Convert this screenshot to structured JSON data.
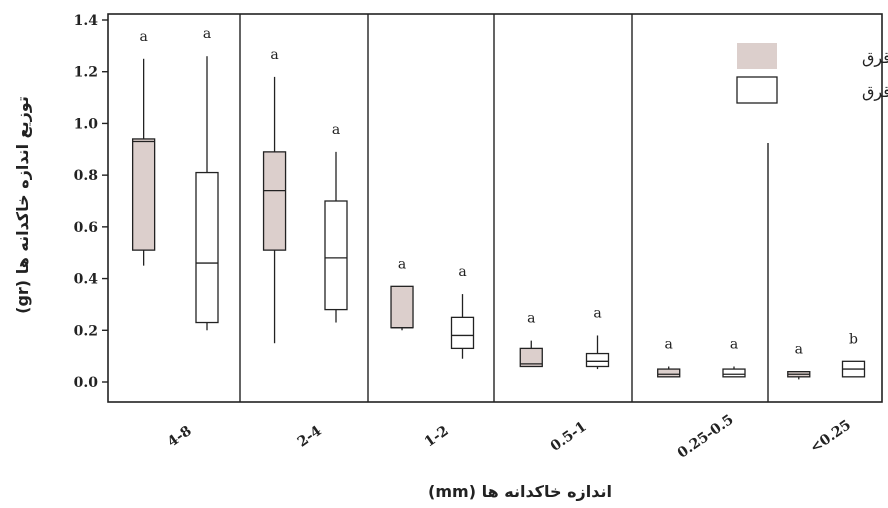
{
  "chart_data": {
    "type": "box",
    "title": "",
    "xlabel": "اندازه خاکدانه ها (mm)",
    "ylabel": "توزیع اندازه خاکدانه ها (gr)",
    "ylim": [
      0,
      1.4
    ],
    "yticks": [
      "0.0",
      "0.2",
      "0.4",
      "0.6",
      "0.8",
      "1.0",
      "1.2",
      "1.4"
    ],
    "categories": [
      "4-8",
      "2-4",
      "1-2",
      "0.5-1",
      "0.25-0.5",
      "<0.25"
    ],
    "legend_position": "top-right",
    "series": [
      {
        "name": "داخل قرق",
        "color": "#dccfcc",
        "boxes": [
          {
            "min": 0.45,
            "q1": 0.51,
            "median": 0.93,
            "q3": 0.94,
            "max": 1.25,
            "sig": "a"
          },
          {
            "min": 0.15,
            "q1": 0.51,
            "median": 0.74,
            "q3": 0.89,
            "max": 1.18,
            "sig": "a"
          },
          {
            "min": 0.2,
            "q1": 0.21,
            "median": 0.21,
            "q3": 0.37,
            "max": 0.37,
            "sig": "a"
          },
          {
            "min": 0.06,
            "q1": 0.06,
            "median": 0.07,
            "q3": 0.13,
            "max": 0.16,
            "sig": "a"
          },
          {
            "min": 0.02,
            "q1": 0.02,
            "median": 0.03,
            "q3": 0.05,
            "max": 0.06,
            "sig": "a"
          },
          {
            "min": 0.01,
            "q1": 0.02,
            "median": 0.03,
            "q3": 0.04,
            "max": 0.04,
            "sig": "a"
          }
        ]
      },
      {
        "name": "خارج قرق",
        "color": "#ffffff",
        "boxes": [
          {
            "min": 0.2,
            "q1": 0.23,
            "median": 0.46,
            "q3": 0.81,
            "max": 1.26,
            "sig": "a"
          },
          {
            "min": 0.23,
            "q1": 0.28,
            "median": 0.48,
            "q3": 0.7,
            "max": 0.89,
            "sig": "a"
          },
          {
            "min": 0.09,
            "q1": 0.13,
            "median": 0.18,
            "q3": 0.25,
            "max": 0.34,
            "sig": "a"
          },
          {
            "min": 0.05,
            "q1": 0.06,
            "median": 0.08,
            "q3": 0.11,
            "max": 0.18,
            "sig": "a"
          },
          {
            "min": 0.02,
            "q1": 0.02,
            "median": 0.03,
            "q3": 0.05,
            "max": 0.06,
            "sig": "a"
          },
          {
            "min": 0.02,
            "q1": 0.02,
            "median": 0.05,
            "q3": 0.08,
            "max": 0.08,
            "sig": "b"
          }
        ]
      }
    ]
  }
}
